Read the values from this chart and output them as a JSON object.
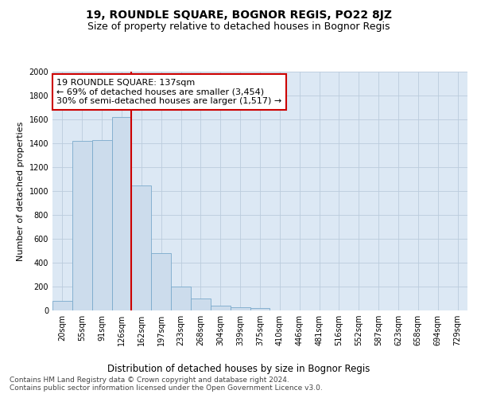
{
  "title": "19, ROUNDLE SQUARE, BOGNOR REGIS, PO22 8JZ",
  "subtitle": "Size of property relative to detached houses in Bognor Regis",
  "xlabel": "Distribution of detached houses by size in Bognor Regis",
  "ylabel": "Number of detached properties",
  "bar_labels": [
    "20sqm",
    "55sqm",
    "91sqm",
    "126sqm",
    "162sqm",
    "197sqm",
    "233sqm",
    "268sqm",
    "304sqm",
    "339sqm",
    "375sqm",
    "410sqm",
    "446sqm",
    "481sqm",
    "516sqm",
    "552sqm",
    "587sqm",
    "623sqm",
    "658sqm",
    "694sqm",
    "729sqm"
  ],
  "bar_values": [
    80,
    1420,
    1430,
    1620,
    1050,
    480,
    200,
    100,
    40,
    30,
    20,
    0,
    0,
    0,
    0,
    0,
    0,
    0,
    0,
    0,
    0
  ],
  "bar_color": "#ccdcec",
  "bar_edge_color": "#7aaacc",
  "vline_x_idx": 3.5,
  "vline_color": "#cc0000",
  "annotation_text": "19 ROUNDLE SQUARE: 137sqm\n← 69% of detached houses are smaller (3,454)\n30% of semi-detached houses are larger (1,517) →",
  "annotation_box_color": "white",
  "annotation_box_edge_color": "#cc0000",
  "ylim": [
    0,
    2000
  ],
  "yticks": [
    0,
    200,
    400,
    600,
    800,
    1000,
    1200,
    1400,
    1600,
    1800,
    2000
  ],
  "grid_color": "#bbccdd",
  "bg_color": "#dce8f4",
  "footer_text": "Contains HM Land Registry data © Crown copyright and database right 2024.\nContains public sector information licensed under the Open Government Licence v3.0.",
  "title_fontsize": 10,
  "subtitle_fontsize": 9,
  "xlabel_fontsize": 8.5,
  "ylabel_fontsize": 8,
  "tick_fontsize": 7,
  "annotation_fontsize": 8,
  "footer_fontsize": 6.5
}
